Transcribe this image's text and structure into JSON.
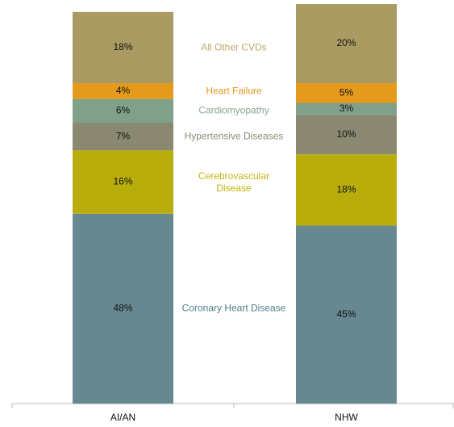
{
  "chart_data": {
    "type": "stacked_bar",
    "categories": [
      "AI/AN",
      "NHW"
    ],
    "series": [
      {
        "name": "Coronary Heart Disease",
        "color": "#688891",
        "label_color": "#4f7f8c",
        "values": [
          48,
          45
        ],
        "value_labels": [
          "48%",
          "45%"
        ]
      },
      {
        "name": "Cerebrovascular Disease",
        "color": "#b9ad0c",
        "label_color": "#c4b50e",
        "values": [
          16,
          18
        ],
        "value_labels": [
          "16%",
          "18%"
        ]
      },
      {
        "name": "Hypertensive Diseases",
        "color": "#8a8870",
        "label_color": "#8a8a78",
        "values": [
          7,
          10
        ],
        "value_labels": [
          "7%",
          "10%"
        ]
      },
      {
        "name": "Cardiomyopathy",
        "color": "#80a08a",
        "label_color": "#86a68f",
        "values": [
          6,
          3
        ],
        "value_labels": [
          "6%",
          "3%"
        ]
      },
      {
        "name": "Heart Failure",
        "color": "#e59a1c",
        "label_color": "#e8961a",
        "values": [
          4,
          5
        ],
        "value_labels": [
          "4%",
          "5%"
        ]
      },
      {
        "name": "All Other CVDs",
        "color": "#a99b62",
        "label_color": "#b9a870",
        "values": [
          18,
          20
        ],
        "value_labels": [
          "18%",
          "20%"
        ]
      }
    ],
    "ylim": [
      0,
      101
    ]
  }
}
